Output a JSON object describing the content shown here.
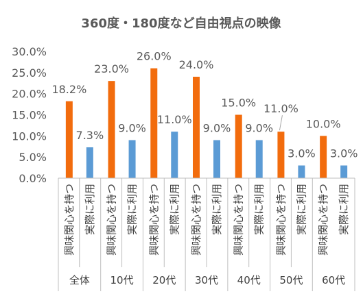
{
  "chart_data": {
    "type": "bar",
    "title": "360度・180度など自由視点の映像",
    "categories": [
      "全体",
      "10代",
      "20代",
      "30代",
      "40代",
      "50代",
      "60代"
    ],
    "series": [
      {
        "name": "興味関心を持つ",
        "values": [
          18.2,
          23.0,
          26.0,
          24.0,
          15.0,
          11.0,
          10.0
        ]
      },
      {
        "name": "実際に利用",
        "values": [
          7.3,
          9.0,
          11.0,
          9.0,
          9.0,
          3.0,
          3.0
        ]
      }
    ],
    "ylim": [
      0,
      30
    ],
    "yticks": [
      "0.0%",
      "5.0%",
      "10.0%",
      "15.0%",
      "20.0%",
      "25.0%",
      "30.0%"
    ],
    "data_labels": [
      [
        "18.2%",
        "23.0%",
        "26.0%",
        "24.0%",
        "15.0%",
        "11.0%",
        "10.0%"
      ],
      [
        "7.3%",
        "9.0%",
        "11.0%",
        "9.0%",
        "9.0%",
        "3.0%",
        "3.0%"
      ]
    ],
    "colors": [
      "#f26c0d",
      "#5b9bd5"
    ],
    "grid": false,
    "legend": "none"
  }
}
